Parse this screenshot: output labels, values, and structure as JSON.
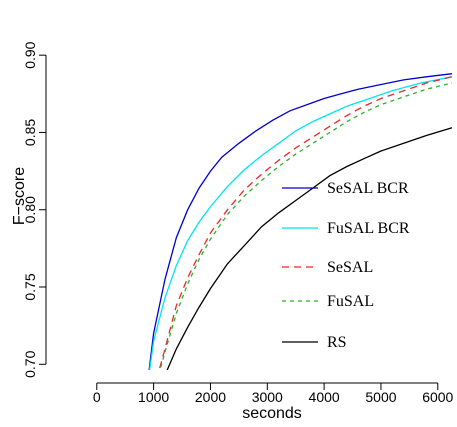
{
  "chart_data": {
    "type": "line",
    "title": "",
    "xlabel": "seconds",
    "ylabel": "F−score",
    "xlim": [
      -700,
      6250
    ],
    "ylim": [
      0.695,
      0.926
    ],
    "xticks": [
      0,
      1000,
      2000,
      3000,
      4000,
      5000,
      6000
    ],
    "yticks": [
      0.7,
      0.75,
      0.8,
      0.85,
      0.9
    ],
    "ytick_labels": [
      "0.70",
      "0.75",
      "0.80",
      "0.85",
      "0.90"
    ],
    "xtick_labels": [
      "0",
      "1000",
      "2000",
      "3000",
      "4000",
      "5000",
      "6000"
    ],
    "grid": false,
    "legend_position": "right",
    "series": [
      {
        "name": "SeSAL BCR",
        "color": "#0000cc",
        "dash": "solid",
        "points": [
          [
            850,
            0.675
          ],
          [
            1000,
            0.72
          ],
          [
            1200,
            0.755
          ],
          [
            1400,
            0.782
          ],
          [
            1600,
            0.8
          ],
          [
            1800,
            0.814
          ],
          [
            2000,
            0.825
          ],
          [
            2200,
            0.834
          ],
          [
            2500,
            0.843
          ],
          [
            2800,
            0.851
          ],
          [
            3100,
            0.858
          ],
          [
            3400,
            0.864
          ],
          [
            3700,
            0.868
          ],
          [
            4000,
            0.872
          ],
          [
            4300,
            0.875
          ],
          [
            4600,
            0.878
          ],
          [
            5000,
            0.881
          ],
          [
            5400,
            0.884
          ],
          [
            5800,
            0.886
          ],
          [
            6250,
            0.888
          ]
        ]
      },
      {
        "name": "FuSAL BCR",
        "color": "#00e5ee",
        "dash": "solid",
        "points": [
          [
            850,
            0.675
          ],
          [
            1000,
            0.715
          ],
          [
            1200,
            0.743
          ],
          [
            1400,
            0.764
          ],
          [
            1600,
            0.78
          ],
          [
            1800,
            0.792
          ],
          [
            2000,
            0.802
          ],
          [
            2300,
            0.815
          ],
          [
            2600,
            0.826
          ],
          [
            2900,
            0.835
          ],
          [
            3200,
            0.843
          ],
          [
            3500,
            0.851
          ],
          [
            3800,
            0.857
          ],
          [
            4100,
            0.862
          ],
          [
            4400,
            0.867
          ],
          [
            4800,
            0.872
          ],
          [
            5200,
            0.877
          ],
          [
            5700,
            0.882
          ],
          [
            6250,
            0.886
          ]
        ]
      },
      {
        "name": "SeSAL",
        "color": "#e8282b",
        "dash": "7,5",
        "points": [
          [
            1050,
            0.69
          ],
          [
            1200,
            0.71
          ],
          [
            1400,
            0.738
          ],
          [
            1600,
            0.756
          ],
          [
            1800,
            0.771
          ],
          [
            2000,
            0.785
          ],
          [
            2300,
            0.8
          ],
          [
            2600,
            0.813
          ],
          [
            2900,
            0.823
          ],
          [
            3200,
            0.832
          ],
          [
            3500,
            0.84
          ],
          [
            3800,
            0.847
          ],
          [
            4100,
            0.854
          ],
          [
            4400,
            0.861
          ],
          [
            4700,
            0.867
          ],
          [
            5000,
            0.872
          ],
          [
            5400,
            0.877
          ],
          [
            5800,
            0.882
          ],
          [
            6250,
            0.886
          ]
        ]
      },
      {
        "name": "FuSAL",
        "color": "#2bb02b",
        "dash": "4,4",
        "points": [
          [
            1050,
            0.688
          ],
          [
            1200,
            0.708
          ],
          [
            1400,
            0.733
          ],
          [
            1600,
            0.752
          ],
          [
            1800,
            0.768
          ],
          [
            2000,
            0.781
          ],
          [
            2300,
            0.797
          ],
          [
            2600,
            0.809
          ],
          [
            2900,
            0.819
          ],
          [
            3200,
            0.828
          ],
          [
            3500,
            0.836
          ],
          [
            3800,
            0.843
          ],
          [
            4100,
            0.85
          ],
          [
            4400,
            0.857
          ],
          [
            4700,
            0.863
          ],
          [
            5000,
            0.868
          ],
          [
            5400,
            0.873
          ],
          [
            5800,
            0.878
          ],
          [
            6250,
            0.882
          ]
        ]
      },
      {
        "name": "RS",
        "color": "#000000",
        "dash": "solid",
        "points": [
          [
            1100,
            0.685
          ],
          [
            1200,
            0.693
          ],
          [
            1400,
            0.71
          ],
          [
            1600,
            0.724
          ],
          [
            1800,
            0.737
          ],
          [
            2000,
            0.749
          ],
          [
            2300,
            0.765
          ],
          [
            2600,
            0.777
          ],
          [
            2900,
            0.789
          ],
          [
            3200,
            0.798
          ],
          [
            3500,
            0.806
          ],
          [
            3800,
            0.814
          ],
          [
            4100,
            0.822
          ],
          [
            4400,
            0.828
          ],
          [
            4700,
            0.833
          ],
          [
            5000,
            0.838
          ],
          [
            5400,
            0.843
          ],
          [
            5800,
            0.848
          ],
          [
            6250,
            0.853
          ]
        ]
      }
    ]
  }
}
